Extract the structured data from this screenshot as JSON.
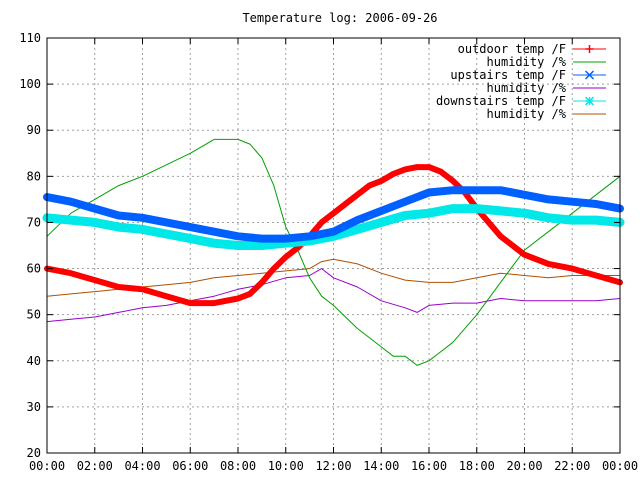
{
  "chart_data": {
    "type": "line",
    "title": "Temperature log: 2006-09-26",
    "xlabel": "",
    "ylabel": "",
    "xlim": [
      0,
      24
    ],
    "ylim": [
      20,
      110
    ],
    "grid": true,
    "legend_position": "top-right",
    "x_ticks": [
      "00:00",
      "02:00",
      "04:00",
      "06:00",
      "08:00",
      "10:00",
      "12:00",
      "14:00",
      "16:00",
      "18:00",
      "20:00",
      "22:00",
      "00:00"
    ],
    "y_ticks": [
      "20",
      "30",
      "40",
      "50",
      "60",
      "70",
      "80",
      "90",
      "100",
      "110"
    ],
    "series": [
      {
        "name": "outdoor temp /F",
        "color": "#ff0000",
        "marker": "plus",
        "x": [
          0,
          1,
          2,
          3,
          4,
          5,
          6,
          7,
          8,
          8.5,
          9,
          9.5,
          10,
          10.5,
          11,
          11.5,
          12,
          12.5,
          13,
          13.5,
          14,
          14.5,
          15,
          15.5,
          16,
          16.5,
          17,
          17.5,
          18,
          18.5,
          19,
          19.5,
          20,
          21,
          22,
          23,
          24
        ],
        "y": [
          60,
          59,
          57.5,
          56,
          55.5,
          54,
          52.5,
          52.5,
          53.5,
          54.5,
          57,
          60,
          62.5,
          64.5,
          67,
          70,
          72,
          74,
          76,
          78,
          79,
          80.5,
          81.5,
          82,
          82,
          81,
          79,
          76.5,
          73,
          70,
          67,
          65,
          63,
          61,
          60,
          58.5,
          57
        ]
      },
      {
        "name": "humidity /%",
        "color": "#00a000",
        "marker": "none",
        "x": [
          0,
          1,
          2,
          3,
          4,
          5,
          6,
          7,
          7.5,
          8,
          8.5,
          9,
          9.5,
          10,
          10.5,
          11,
          11.5,
          12,
          13,
          14,
          14.5,
          15,
          15.5,
          16,
          16.5,
          17,
          18,
          19,
          20,
          21,
          22,
          23,
          24
        ],
        "y": [
          67,
          72,
          75,
          78,
          80,
          82.5,
          85,
          88,
          88,
          88,
          87,
          84,
          78,
          69,
          64,
          58,
          54,
          52,
          47,
          43,
          41,
          41,
          39,
          40,
          42,
          44,
          50,
          57,
          64,
          68,
          72,
          76,
          80
        ]
      },
      {
        "name": "upstairs temp /F",
        "color": "#0060ff",
        "marker": "x",
        "x": [
          0,
          1,
          2,
          3,
          4,
          5,
          6,
          7,
          8,
          9,
          10,
          11,
          12,
          13,
          14,
          15,
          16,
          17,
          18,
          19,
          20,
          21,
          22,
          23,
          24
        ],
        "y": [
          75.5,
          74.5,
          73,
          71.5,
          71,
          70,
          69,
          68,
          67,
          66.5,
          66.5,
          67,
          68,
          70.5,
          72.5,
          74.5,
          76.5,
          77,
          77,
          77,
          76,
          75,
          74.5,
          74,
          73
        ]
      },
      {
        "name": "humidity /%",
        "color": "#9900cc",
        "marker": "none",
        "x": [
          0,
          1,
          2,
          3,
          4,
          5,
          6,
          7,
          8,
          9,
          10,
          11,
          11.5,
          12,
          13,
          14,
          15,
          15.5,
          16,
          17,
          18,
          19,
          20,
          21,
          22,
          23,
          24
        ],
        "y": [
          48.5,
          49,
          49.5,
          50.5,
          51.5,
          52,
          53,
          54,
          55.5,
          56.5,
          58,
          58.5,
          60,
          58,
          56,
          53,
          51.5,
          50.5,
          52,
          52.5,
          52.5,
          53.5,
          53,
          53,
          53,
          53,
          53.5
        ]
      },
      {
        "name": "downstairs temp /F",
        "color": "#00e8e8",
        "marker": "star",
        "x": [
          0,
          1,
          2,
          3,
          4,
          5,
          6,
          7,
          8,
          9,
          10,
          11,
          12,
          13,
          14,
          15,
          16,
          17,
          18,
          19,
          20,
          21,
          22,
          23,
          24
        ],
        "y": [
          71,
          70.5,
          70,
          69,
          68.5,
          67.5,
          66.5,
          65.5,
          65,
          65,
          65.5,
          66,
          67,
          68.5,
          70,
          71.5,
          72,
          73,
          73,
          72.5,
          72,
          71,
          70.5,
          70.5,
          70
        ]
      },
      {
        "name": "humidity /%",
        "color": "#b05000",
        "marker": "none",
        "x": [
          0,
          1,
          2,
          3,
          4,
          5,
          6,
          7,
          8,
          9,
          10,
          11,
          11.5,
          12,
          13,
          14,
          15,
          16,
          17,
          18,
          19,
          20,
          21,
          22,
          23,
          24
        ],
        "y": [
          54,
          54.5,
          55,
          55.5,
          56,
          56.5,
          57,
          58,
          58.5,
          59,
          59.5,
          60,
          61.5,
          62,
          61,
          59,
          57.5,
          57,
          57,
          58,
          59,
          58.5,
          58,
          58.5,
          58.5,
          58.5
        ]
      }
    ]
  }
}
